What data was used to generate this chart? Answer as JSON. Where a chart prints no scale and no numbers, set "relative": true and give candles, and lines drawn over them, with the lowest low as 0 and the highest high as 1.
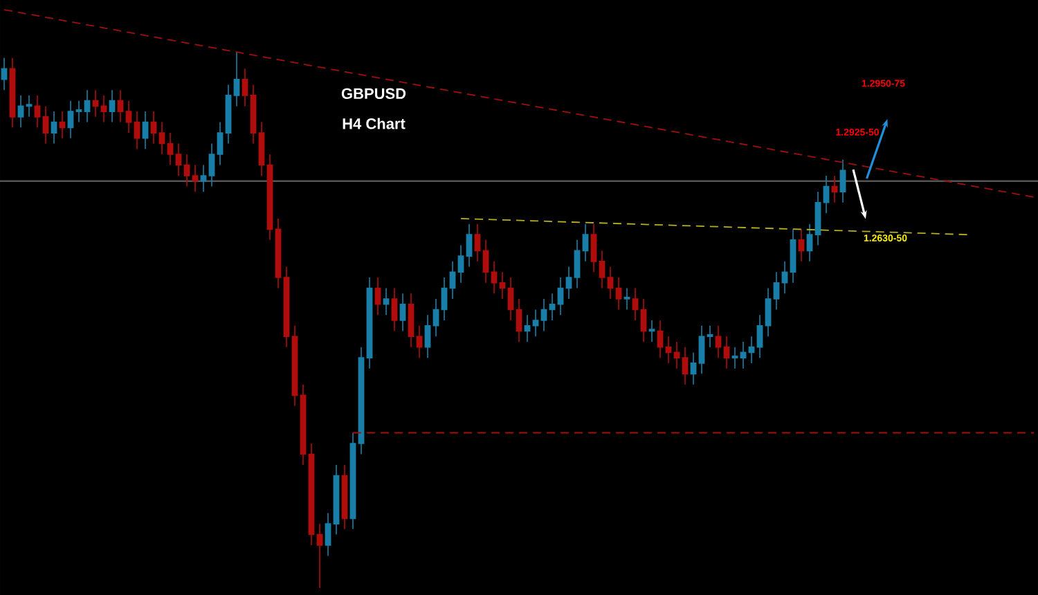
{
  "chart_data": {
    "type": "candlestick",
    "relative": true,
    "title": "GBPUSD",
    "subtitle": "H4 Chart",
    "categories": [
      null,
      null,
      null,
      null,
      null,
      null,
      null,
      null,
      null,
      null,
      null,
      null,
      null,
      null,
      null,
      null,
      null,
      null,
      null,
      null,
      null,
      null,
      null,
      null,
      null,
      null,
      null,
      null,
      null,
      null,
      null,
      null,
      null,
      null,
      null,
      null,
      null,
      null,
      null,
      null,
      null,
      null,
      null,
      null,
      null,
      null,
      null,
      null,
      null,
      null,
      null,
      null,
      null,
      null,
      null,
      null,
      null,
      null,
      null,
      null,
      null,
      null,
      null,
      null,
      null,
      null,
      null,
      null,
      null,
      null,
      null,
      null,
      null,
      null,
      null,
      null,
      null,
      null,
      null,
      null,
      null,
      null,
      null,
      null,
      null,
      null,
      null,
      null,
      null,
      null,
      null,
      null,
      null,
      null,
      null,
      null,
      null,
      null,
      null,
      null,
      null,
      null,
      null,
      null,
      null,
      null,
      null,
      null,
      null,
      null,
      null,
      null,
      null,
      null,
      null,
      null,
      null,
      null,
      null,
      null,
      null,
      null,
      null,
      null,
      null
    ],
    "colors": [
      "#1a7fa8",
      "#b00d0d",
      "#1a7fa8",
      "#1a7fa8",
      "#b00d0d",
      "#b00d0d",
      "#1a7fa8",
      "#b00d0d",
      "#1a7fa8",
      "#1a7fa8",
      "#1a7fa8",
      "#b00d0d",
      "#b00d0d",
      "#1a7fa8",
      "#b00d0d",
      "#b00d0d",
      "#b00d0d",
      "#1a7fa8",
      "#b00d0d",
      "#b00d0d",
      "#b00d0d",
      "#b00d0d",
      "#b00d0d",
      "#b00d0d",
      "#1a7fa8",
      "#1a7fa8",
      "#1a7fa8",
      "#1a7fa8",
      "#1a7fa8",
      "#b00d0d",
      "#b00d0d",
      "#b00d0d",
      "#b00d0d",
      "#b00d0d",
      "#b00d0d",
      "#b00d0d",
      "#b00d0d",
      "#b00d0d",
      "#b00d0d",
      "#1a7fa8",
      "#1a7fa8",
      "#b00d0d",
      "#1a7fa8",
      "#1a7fa8",
      "#1a7fa8",
      "#b00d0d",
      "#1a7fa8",
      "#b00d0d",
      "#1a7fa8",
      "#b00d0d",
      "#b00d0d",
      "#1a7fa8",
      "#1a7fa8",
      "#1a7fa8",
      "#1a7fa8",
      "#1a7fa8",
      "#1a7fa8",
      "#b00d0d",
      "#b00d0d",
      "#b00d0d",
      "#b00d0d",
      "#b00d0d",
      "#b00d0d",
      "#1a7fa8",
      "#1a7fa8",
      "#1a7fa8",
      "#1a7fa8",
      "#1a7fa8",
      "#1a7fa8",
      "#1a7fa8",
      "#1a7fa8",
      "#b00d0d",
      "#b00d0d",
      "#b00d0d",
      "#b00d0d",
      "#1a7fa8",
      "#b00d0d",
      "#b00d0d",
      "#1a7fa8",
      "#b00d0d",
      "#b00d0d",
      "#b00d0d",
      "#b00d0d",
      "#1a7fa8",
      "#1a7fa8",
      "#1a7fa8",
      "#b00d0d",
      "#b00d0d",
      "#1a7fa8",
      "#1a7fa8",
      "#1a7fa8",
      "#1a7fa8",
      "#1a7fa8",
      "#1a7fa8",
      "#1a7fa8",
      "#1a7fa8",
      "#b00d0d",
      "#1a7fa8",
      "#1a7fa8",
      "#1a7fa8",
      "#b00d0d",
      "#1a7fa8",
      null,
      null,
      null,
      null,
      null,
      null,
      null,
      null,
      null,
      null,
      null,
      null,
      null,
      null,
      null,
      null,
      null,
      null,
      null,
      null,
      null,
      null,
      null
    ],
    "ohlc": [
      [
        0.95,
        0.99,
        0.93,
        0.97
      ],
      [
        0.97,
        0.99,
        0.86,
        0.88
      ],
      [
        0.88,
        0.92,
        0.86,
        0.9
      ],
      [
        0.9,
        0.92,
        0.88,
        0.9
      ],
      [
        0.9,
        0.92,
        0.86,
        0.88
      ],
      [
        0.88,
        0.9,
        0.83,
        0.85
      ],
      [
        0.85,
        0.89,
        0.83,
        0.87
      ],
      [
        0.87,
        0.89,
        0.84,
        0.86
      ],
      [
        0.86,
        0.91,
        0.84,
        0.89
      ],
      [
        0.89,
        0.91,
        0.87,
        0.89
      ],
      [
        0.89,
        0.93,
        0.87,
        0.91
      ],
      [
        0.91,
        0.93,
        0.88,
        0.9
      ],
      [
        0.9,
        0.92,
        0.87,
        0.89
      ],
      [
        0.89,
        0.93,
        0.87,
        0.91
      ],
      [
        0.91,
        0.93,
        0.87,
        0.89
      ],
      [
        0.89,
        0.91,
        0.85,
        0.87
      ],
      [
        0.87,
        0.89,
        0.82,
        0.84
      ],
      [
        0.84,
        0.89,
        0.82,
        0.87
      ],
      [
        0.87,
        0.89,
        0.83,
        0.85
      ],
      [
        0.85,
        0.87,
        0.81,
        0.83
      ],
      [
        0.83,
        0.85,
        0.79,
        0.81
      ],
      [
        0.81,
        0.83,
        0.77,
        0.79
      ],
      [
        0.79,
        0.81,
        0.75,
        0.77
      ],
      [
        0.77,
        0.79,
        0.74,
        0.76
      ],
      [
        0.76,
        0.79,
        0.74,
        0.77
      ],
      [
        0.77,
        0.83,
        0.75,
        0.81
      ],
      [
        0.81,
        0.87,
        0.79,
        0.85
      ],
      [
        0.85,
        0.94,
        0.83,
        0.92
      ],
      [
        0.92,
        1,
        0.9,
        0.95
      ],
      [
        0.95,
        0.97,
        0.9,
        0.92
      ],
      [
        0.92,
        0.94,
        0.83,
        0.85
      ],
      [
        0.85,
        0.87,
        0.77,
        0.79
      ],
      [
        0.79,
        0.81,
        0.65,
        0.67
      ],
      [
        0.67,
        0.69,
        0.56,
        0.58
      ],
      [
        0.58,
        0.6,
        0.45,
        0.47
      ],
      [
        0.47,
        0.49,
        0.34,
        0.36
      ],
      [
        0.36,
        0.38,
        0.23,
        0.25
      ],
      [
        0.25,
        0.27,
        0.08,
        0.1
      ],
      [
        0.1,
        0.12,
        0,
        0.08
      ],
      [
        0.08,
        0.14,
        0.06,
        0.12
      ],
      [
        0.12,
        0.23,
        0.1,
        0.21
      ],
      [
        0.21,
        0.23,
        0.11,
        0.13
      ],
      [
        0.13,
        0.29,
        0.11,
        0.27
      ],
      [
        0.27,
        0.45,
        0.25,
        0.43
      ],
      [
        0.43,
        0.58,
        0.41,
        0.56
      ],
      [
        0.56,
        0.58,
        0.51,
        0.53
      ],
      [
        0.53,
        0.56,
        0.51,
        0.54
      ],
      [
        0.54,
        0.56,
        0.48,
        0.5
      ],
      [
        0.5,
        0.55,
        0.48,
        0.53
      ],
      [
        0.53,
        0.55,
        0.45,
        0.47
      ],
      [
        0.47,
        0.49,
        0.43,
        0.45
      ],
      [
        0.45,
        0.51,
        0.43,
        0.49
      ],
      [
        0.49,
        0.54,
        0.47,
        0.52
      ],
      [
        0.52,
        0.58,
        0.5,
        0.56
      ],
      [
        0.56,
        0.61,
        0.54,
        0.59
      ],
      [
        0.59,
        0.64,
        0.57,
        0.62
      ],
      [
        0.62,
        0.68,
        0.6,
        0.66
      ],
      [
        0.66,
        0.68,
        0.61,
        0.63
      ],
      [
        0.63,
        0.65,
        0.57,
        0.59
      ],
      [
        0.59,
        0.61,
        0.55,
        0.57
      ],
      [
        0.57,
        0.59,
        0.54,
        0.56
      ],
      [
        0.56,
        0.58,
        0.5,
        0.52
      ],
      [
        0.52,
        0.54,
        0.46,
        0.48
      ],
      [
        0.48,
        0.51,
        0.46,
        0.49
      ],
      [
        0.49,
        0.52,
        0.47,
        0.5
      ],
      [
        0.5,
        0.54,
        0.48,
        0.52
      ],
      [
        0.52,
        0.55,
        0.5,
        0.53
      ],
      [
        0.53,
        0.58,
        0.51,
        0.56
      ],
      [
        0.56,
        0.6,
        0.54,
        0.58
      ],
      [
        0.58,
        0.65,
        0.56,
        0.63
      ],
      [
        0.63,
        0.68,
        0.61,
        0.66
      ],
      [
        0.66,
        0.68,
        0.59,
        0.61
      ],
      [
        0.61,
        0.63,
        0.56,
        0.58
      ],
      [
        0.58,
        0.6,
        0.54,
        0.56
      ],
      [
        0.56,
        0.58,
        0.52,
        0.54
      ],
      [
        0.54,
        0.56,
        0.52,
        0.54
      ],
      [
        0.54,
        0.56,
        0.5,
        0.52
      ],
      [
        0.52,
        0.54,
        0.46,
        0.48
      ],
      [
        0.48,
        0.5,
        0.46,
        0.48
      ],
      [
        0.48,
        0.5,
        0.43,
        0.45
      ],
      [
        0.45,
        0.47,
        0.42,
        0.44
      ],
      [
        0.44,
        0.46,
        0.41,
        0.43
      ],
      [
        0.43,
        0.45,
        0.38,
        0.4
      ],
      [
        0.4,
        0.44,
        0.38,
        0.42
      ],
      [
        0.42,
        0.49,
        0.4,
        0.47
      ],
      [
        0.47,
        0.49,
        0.45,
        0.47
      ],
      [
        0.47,
        0.49,
        0.43,
        0.45
      ],
      [
        0.45,
        0.47,
        0.41,
        0.43
      ],
      [
        0.43,
        0.45,
        0.41,
        0.43
      ],
      [
        0.43,
        0.46,
        0.41,
        0.44
      ],
      [
        0.44,
        0.47,
        0.42,
        0.45
      ],
      [
        0.45,
        0.51,
        0.43,
        0.49
      ],
      [
        0.49,
        0.56,
        0.47,
        0.54
      ],
      [
        0.54,
        0.59,
        0.52,
        0.57
      ],
      [
        0.57,
        0.61,
        0.55,
        0.59
      ],
      [
        0.59,
        0.67,
        0.57,
        0.65
      ],
      [
        0.65,
        0.67,
        0.61,
        0.63
      ],
      [
        0.63,
        0.68,
        0.61,
        0.66
      ],
      [
        0.66,
        0.74,
        0.64,
        0.72
      ],
      [
        0.72,
        0.77,
        0.7,
        0.75
      ],
      [
        0.75,
        0.77,
        0.72,
        0.74
      ],
      [
        0.74,
        0.8,
        0.72,
        0.78
      ],
      null,
      null,
      null,
      null,
      null,
      null,
      null,
      null,
      null,
      null,
      null,
      null,
      null,
      null,
      null,
      null,
      null,
      null,
      null,
      null,
      null,
      null,
      null
    ],
    "series": [
      {
        "type": "line",
        "color": "#a01010",
        "line_style": "dashed",
        "values": [
          1.08,
          null,
          null,
          null,
          null,
          null,
          null,
          null,
          null,
          null,
          null,
          null,
          null,
          null,
          null,
          null,
          null,
          null,
          null,
          null,
          null,
          null,
          null,
          null,
          null,
          null,
          null,
          null,
          null,
          null,
          null,
          null,
          null,
          null,
          null,
          null,
          null,
          null,
          null,
          null,
          null,
          null,
          null,
          null,
          null,
          null,
          null,
          null,
          null,
          null,
          null,
          null,
          null,
          null,
          null,
          null,
          null,
          null,
          null,
          null,
          null,
          null,
          null,
          null,
          null,
          null,
          null,
          null,
          null,
          null,
          null,
          null,
          null,
          null,
          null,
          null,
          null,
          null,
          null,
          null,
          null,
          null,
          null,
          null,
          null,
          null,
          null,
          null,
          null,
          null,
          null,
          null,
          null,
          null,
          null,
          null,
          null,
          null,
          null,
          null,
          null,
          null,
          null,
          null,
          null,
          null,
          null,
          null,
          null,
          null,
          null,
          null,
          null,
          null,
          null,
          null,
          null,
          null,
          null,
          null,
          null,
          null,
          null,
          null,
          0.73
        ]
      },
      {
        "type": "line",
        "color": "#b8b020",
        "line_style": "dashed",
        "values": [
          null,
          null,
          null,
          null,
          null,
          null,
          null,
          null,
          null,
          null,
          null,
          null,
          null,
          null,
          null,
          null,
          null,
          null,
          null,
          null,
          null,
          null,
          null,
          null,
          null,
          null,
          null,
          null,
          null,
          null,
          null,
          null,
          null,
          null,
          null,
          null,
          null,
          null,
          null,
          null,
          null,
          null,
          null,
          null,
          null,
          null,
          null,
          null,
          null,
          null,
          null,
          null,
          null,
          null,
          null,
          0.69,
          null,
          null,
          null,
          null,
          null,
          null,
          null,
          null,
          null,
          null,
          null,
          null,
          null,
          null,
          null,
          null,
          null,
          null,
          null,
          null,
          null,
          null,
          null,
          null,
          null,
          null,
          null,
          null,
          null,
          null,
          null,
          null,
          null,
          null,
          null,
          null,
          null,
          null,
          null,
          null,
          null,
          null,
          null,
          null,
          null,
          null,
          null,
          null,
          null,
          null,
          null,
          null,
          null,
          null,
          null,
          null,
          null,
          null,
          null,
          null,
          0.66,
          null,
          null,
          null,
          null,
          null,
          null,
          null,
          null
        ]
      },
      {
        "type": "line",
        "color": "#a01010",
        "line_style": "dashed",
        "values": [
          null,
          null,
          null,
          null,
          null,
          null,
          null,
          null,
          null,
          null,
          null,
          null,
          null,
          null,
          null,
          null,
          null,
          null,
          null,
          null,
          null,
          null,
          null,
          null,
          null,
          null,
          null,
          null,
          null,
          null,
          null,
          null,
          null,
          null,
          null,
          null,
          null,
          null,
          null,
          null,
          null,
          null,
          0.29,
          null,
          null,
          null,
          null,
          null,
          null,
          null,
          null,
          null,
          null,
          null,
          null,
          null,
          null,
          null,
          null,
          null,
          null,
          null,
          null,
          null,
          null,
          null,
          null,
          null,
          null,
          null,
          null,
          null,
          null,
          null,
          null,
          null,
          null,
          null,
          null,
          null,
          null,
          null,
          null,
          null,
          null,
          null,
          null,
          null,
          null,
          null,
          null,
          null,
          null,
          null,
          null,
          null,
          null,
          null,
          null,
          null,
          null,
          null,
          null,
          null,
          null,
          null,
          null,
          null,
          null,
          null,
          null,
          null,
          null,
          null,
          null,
          null,
          null,
          null,
          null,
          null,
          null,
          null,
          null,
          null,
          0.29
        ]
      }
    ],
    "ref_lines": [
      {
        "axis": "y",
        "value": 0.76,
        "color": "#555555",
        "line_style": "solid"
      }
    ],
    "annotations": [
      "1.2925-50",
      "1.2950-75",
      "1.2630-50"
    ]
  }
}
